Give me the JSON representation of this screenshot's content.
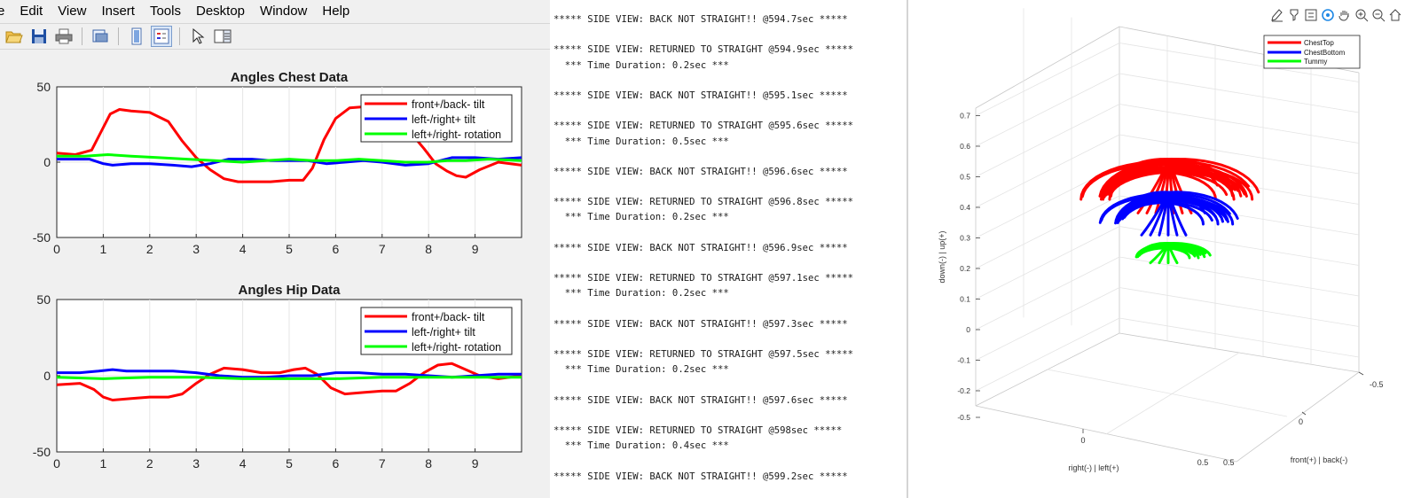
{
  "menubar": {
    "items": [
      "e",
      "Edit",
      "View",
      "Insert",
      "Tools",
      "Desktop",
      "Window",
      "Help"
    ]
  },
  "toolbar": {
    "buttons": [
      "open-file-icon",
      "save-icon",
      "print-icon",
      "print-preview-icon",
      "colorbar-icon",
      "legend-icon",
      "pointer-icon",
      "property-inspector-icon"
    ]
  },
  "console": {
    "lines": [
      "***** SIDE VIEW: BACK NOT STRAIGHT!! @594.7sec *****",
      "",
      "***** SIDE VIEW: RETURNED TO STRAIGHT @594.9sec *****",
      "  *** Time Duration: 0.2sec ***",
      "",
      "***** SIDE VIEW: BACK NOT STRAIGHT!! @595.1sec *****",
      "",
      "***** SIDE VIEW: RETURNED TO STRAIGHT @595.6sec *****",
      "  *** Time Duration: 0.5sec ***",
      "",
      "***** SIDE VIEW: BACK NOT STRAIGHT!! @596.6sec *****",
      "",
      "***** SIDE VIEW: RETURNED TO STRAIGHT @596.8sec *****",
      "  *** Time Duration: 0.2sec ***",
      "",
      "***** SIDE VIEW: BACK NOT STRAIGHT!! @596.9sec *****",
      "",
      "***** SIDE VIEW: RETURNED TO STRAIGHT @597.1sec *****",
      "  *** Time Duration: 0.2sec ***",
      "",
      "***** SIDE VIEW: BACK NOT STRAIGHT!! @597.3sec *****",
      "",
      "***** SIDE VIEW: RETURNED TO STRAIGHT @597.5sec *****",
      "  *** Time Duration: 0.2sec ***",
      "",
      "***** SIDE VIEW: BACK NOT STRAIGHT!! @597.6sec *****",
      "",
      "***** SIDE VIEW: RETURNED TO STRAIGHT @598sec *****",
      "  *** Time Duration: 0.4sec ***",
      "",
      "***** SIDE VIEW: BACK NOT STRAIGHT!! @599.2sec *****"
    ]
  },
  "axes_toolbar": {
    "buttons": [
      "brush-icon",
      "data-tips-icon",
      "legend-toggle-icon",
      "rotate-3d-icon",
      "pan-hand-icon",
      "zoom-in-icon",
      "zoom-out-icon",
      "home-icon"
    ]
  },
  "colors": {
    "red": "#ff0000",
    "blue": "#0000ff",
    "green": "#00ff00"
  },
  "chart_data": [
    {
      "type": "line",
      "title": "Angles Chest Data",
      "xlim": [
        0,
        10
      ],
      "ylim": [
        -50,
        50
      ],
      "xticks": [
        0,
        1,
        2,
        3,
        4,
        5,
        6,
        7,
        8,
        9
      ],
      "yticks": [
        50,
        0,
        -50
      ],
      "grid": true,
      "legend_position": "top-right",
      "series": [
        {
          "name": "front+/back- tilt",
          "color": "#ff0000",
          "x": [
            0,
            0.4,
            0.75,
            0.95,
            1.15,
            1.35,
            1.6,
            2.0,
            2.4,
            2.7,
            3.0,
            3.3,
            3.6,
            3.9,
            4.3,
            4.6,
            5.0,
            5.3,
            5.5,
            5.75,
            6.0,
            6.3,
            6.7,
            7.0,
            7.3,
            7.6,
            7.9,
            8.15,
            8.4,
            8.6,
            8.8,
            9.1,
            9.5,
            10
          ],
          "y": [
            6,
            5,
            8,
            20,
            32,
            35,
            34,
            33,
            27,
            14,
            3,
            -5,
            -11,
            -13,
            -13,
            -13,
            -12,
            -12,
            -4,
            15,
            29,
            36,
            37,
            37,
            34,
            20,
            9,
            -1,
            -6,
            -9,
            -10,
            -5,
            0,
            -2
          ]
        },
        {
          "name": "left-/right+ tilt",
          "color": "#0000ff",
          "x": [
            0,
            0.7,
            1.0,
            1.2,
            1.6,
            2.0,
            2.5,
            2.9,
            3.3,
            3.7,
            4.2,
            4.6,
            5.0,
            5.4,
            5.8,
            6.2,
            6.6,
            7.0,
            7.5,
            8.0,
            8.5,
            9.0,
            9.5,
            10
          ],
          "y": [
            2,
            2,
            -1,
            -2,
            -1,
            -1,
            -2,
            -3,
            -1,
            2,
            2,
            1,
            1,
            1,
            -1,
            0,
            1,
            0,
            -2,
            -1,
            3,
            3,
            2,
            3
          ]
        },
        {
          "name": "left+/right- rotation",
          "color": "#00ff00",
          "x": [
            0,
            0.6,
            1.1,
            1.6,
            2.2,
            2.8,
            3.4,
            4.0,
            4.5,
            5.0,
            5.5,
            6.0,
            6.5,
            7.0,
            7.5,
            8.0,
            8.4,
            8.8,
            9.3,
            10
          ],
          "y": [
            4,
            4,
            5,
            4,
            3,
            2,
            1,
            0,
            1,
            2,
            1,
            1,
            2,
            1,
            0,
            0,
            1,
            1,
            2,
            1
          ]
        }
      ]
    },
    {
      "type": "line",
      "title": "Angles Hip Data",
      "xlim": [
        0,
        10
      ],
      "ylim": [
        -50,
        50
      ],
      "xticks": [
        0,
        1,
        2,
        3,
        4,
        5,
        6,
        7,
        8,
        9
      ],
      "yticks": [
        50,
        0,
        -50
      ],
      "grid": true,
      "legend_position": "top-right",
      "series": [
        {
          "name": "front+/back- tilt",
          "color": "#ff0000",
          "x": [
            0,
            0.5,
            0.8,
            1.0,
            1.2,
            1.6,
            2.0,
            2.4,
            2.7,
            3.0,
            3.3,
            3.6,
            4.0,
            4.4,
            4.8,
            5.1,
            5.35,
            5.6,
            5.9,
            6.2,
            6.6,
            7.0,
            7.3,
            7.6,
            7.9,
            8.2,
            8.5,
            8.8,
            9.1,
            9.5,
            10
          ],
          "y": [
            -6,
            -5,
            -9,
            -14,
            -16,
            -15,
            -14,
            -14,
            -12,
            -5,
            1,
            5,
            4,
            2,
            2,
            4,
            5,
            1,
            -8,
            -12,
            -11,
            -10,
            -10,
            -5,
            2,
            7,
            8,
            4,
            0,
            -2,
            0
          ]
        },
        {
          "name": "left-/right+ tilt",
          "color": "#0000ff",
          "x": [
            0,
            0.5,
            0.9,
            1.2,
            1.5,
            2.0,
            2.5,
            3.0,
            3.5,
            4.0,
            4.5,
            5.0,
            5.5,
            6.0,
            6.5,
            7.0,
            7.5,
            8.0,
            8.5,
            9.0,
            9.5,
            10
          ],
          "y": [
            2,
            2,
            3,
            4,
            3,
            3,
            3,
            2,
            0,
            -1,
            -1,
            0,
            0,
            2,
            2,
            1,
            1,
            0,
            -1,
            0,
            1,
            1
          ]
        },
        {
          "name": "left+/right- rotation",
          "color": "#00ff00",
          "x": [
            0,
            1,
            2,
            3,
            4,
            5,
            6,
            7,
            8,
            9,
            10
          ],
          "y": [
            -1,
            -2,
            -1,
            -1,
            -2,
            -2,
            -2,
            -1,
            -1,
            -1,
            -1
          ]
        }
      ]
    },
    {
      "type": "line",
      "subtype": "3d",
      "ylabel": "down(-) | up(+)",
      "xlabel": "right(-) | left(+)",
      "zlabel": "front(+) | back(-)",
      "vertical_ticks": [
        0.7,
        0.6,
        0.5,
        0.4,
        0.3,
        0.2,
        0.1,
        0,
        -0.1,
        -0.2,
        -0.5
      ],
      "left_floor_ticks": [
        "0",
        "0.5"
      ],
      "right_floor_ticks": [
        "0.5",
        "0",
        "-0.5"
      ],
      "legend_position": "top-right",
      "series": [
        {
          "name": "ChestTop",
          "color": "#ff0000"
        },
        {
          "name": "ChestBottom",
          "color": "#0000ff"
        },
        {
          "name": "Tummy",
          "color": "#00ff00"
        }
      ]
    }
  ]
}
